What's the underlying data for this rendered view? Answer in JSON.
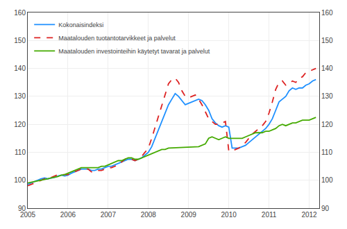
{
  "chart_data": {
    "type": "line",
    "xlim": [
      2005.0,
      2012.25
    ],
    "xticks": [
      2005,
      2006,
      2007,
      2008,
      2009,
      2010,
      2011,
      2012
    ],
    "ylim": [
      90,
      160
    ],
    "yticks": [
      90,
      100,
      110,
      120,
      130,
      140,
      150,
      160
    ],
    "y2lim": [
      90,
      160
    ],
    "y2ticks": [
      90,
      100,
      110,
      120,
      130,
      140,
      150,
      160
    ],
    "grid": true,
    "legend": "upper left",
    "series": [
      {
        "name": "Kokonaisindeksi",
        "color": "#1e90ff",
        "line_style": "solid",
        "x": [
          2005.0,
          2005.083,
          2005.167,
          2005.25,
          2005.333,
          2005.417,
          2005.5,
          2005.583,
          2005.667,
          2005.75,
          2005.833,
          2005.917,
          2006.0,
          2006.083,
          2006.167,
          2006.25,
          2006.333,
          2006.417,
          2006.5,
          2006.583,
          2006.667,
          2006.75,
          2006.833,
          2006.917,
          2007.0,
          2007.083,
          2007.167,
          2007.25,
          2007.333,
          2007.417,
          2007.5,
          2007.583,
          2007.667,
          2007.75,
          2007.833,
          2007.917,
          2008.0,
          2008.083,
          2008.167,
          2008.25,
          2008.333,
          2008.417,
          2008.5,
          2008.583,
          2008.667,
          2008.75,
          2008.833,
          2008.917,
          2009.0,
          2009.083,
          2009.167,
          2009.25,
          2009.333,
          2009.417,
          2009.5,
          2009.583,
          2009.667,
          2009.75,
          2009.833,
          2009.917,
          2010.0,
          2010.083,
          2010.167,
          2010.25,
          2010.333,
          2010.417,
          2010.5,
          2010.583,
          2010.667,
          2010.75,
          2010.833,
          2010.917,
          2011.0,
          2011.083,
          2011.167,
          2011.25,
          2011.333,
          2011.417,
          2011.5,
          2011.583,
          2011.667,
          2011.75,
          2011.833,
          2011.917,
          2012.0,
          2012.083,
          2012.167
        ],
        "values": [
          98.5,
          99.0,
          99.5,
          100.0,
          100.5,
          100.8,
          100.5,
          100.8,
          101.0,
          101.5,
          101.8,
          101.5,
          101.8,
          102.5,
          103.0,
          103.5,
          104.0,
          104.0,
          104.0,
          103.5,
          103.5,
          104.0,
          104.0,
          104.5,
          105.0,
          105.0,
          105.5,
          106.0,
          106.5,
          107.0,
          107.5,
          107.5,
          107.0,
          107.5,
          108.0,
          109.0,
          110.0,
          112.0,
          115.0,
          118.0,
          121.0,
          124.0,
          127.0,
          129.0,
          131.0,
          130.0,
          128.5,
          127.0,
          127.5,
          128.0,
          128.5,
          129.0,
          128.5,
          127.0,
          125.0,
          122.0,
          120.5,
          119.5,
          119.0,
          119.5,
          119.0,
          111.5,
          111.5,
          111.5,
          112.0,
          112.5,
          113.5,
          114.5,
          115.5,
          116.5,
          117.5,
          118.5,
          120.0,
          122.0,
          125.0,
          128.0,
          129.0,
          130.0,
          132.0,
          133.0,
          132.5,
          133.0,
          133.0,
          134.0,
          134.5,
          135.5,
          136.0
        ]
      },
      {
        "name": "Maatalouden tuotantotarvikkeet ja palvelut",
        "color": "#dd2222",
        "line_style": "dashed",
        "x": [
          2005.0,
          2005.083,
          2005.167,
          2005.25,
          2005.333,
          2005.417,
          2005.5,
          2005.583,
          2005.667,
          2005.75,
          2005.833,
          2005.917,
          2006.0,
          2006.083,
          2006.167,
          2006.25,
          2006.333,
          2006.417,
          2006.5,
          2006.583,
          2006.667,
          2006.75,
          2006.833,
          2006.917,
          2007.0,
          2007.083,
          2007.167,
          2007.25,
          2007.333,
          2007.417,
          2007.5,
          2007.583,
          2007.667,
          2007.75,
          2007.833,
          2007.917,
          2008.0,
          2008.083,
          2008.167,
          2008.25,
          2008.333,
          2008.417,
          2008.5,
          2008.583,
          2008.667,
          2008.75,
          2008.833,
          2008.917,
          2009.0,
          2009.083,
          2009.167,
          2009.25,
          2009.333,
          2009.417,
          2009.5,
          2009.583,
          2009.667,
          2009.75,
          2009.833,
          2009.917,
          2010.0,
          2010.083,
          2010.167,
          2010.25,
          2010.333,
          2010.417,
          2010.5,
          2010.583,
          2010.667,
          2010.75,
          2010.833,
          2010.917,
          2011.0,
          2011.083,
          2011.167,
          2011.25,
          2011.333,
          2011.417,
          2011.5,
          2011.583,
          2011.667,
          2011.75,
          2011.833,
          2011.917,
          2012.0,
          2012.083,
          2012.167
        ],
        "values": [
          98.0,
          98.5,
          99.0,
          99.5,
          100.0,
          100.5,
          100.5,
          101.0,
          101.5,
          102.0,
          102.0,
          102.0,
          102.0,
          102.5,
          103.0,
          103.5,
          104.0,
          104.0,
          104.0,
          103.0,
          103.0,
          103.5,
          103.5,
          104.0,
          104.5,
          104.5,
          105.0,
          105.5,
          106.5,
          107.5,
          108.0,
          107.5,
          107.0,
          107.5,
          108.5,
          110.0,
          111.5,
          115.0,
          119.0,
          123.0,
          127.0,
          131.0,
          134.5,
          136.0,
          136.5,
          135.0,
          132.0,
          130.0,
          129.5,
          130.0,
          130.5,
          129.0,
          127.0,
          124.5,
          122.0,
          121.0,
          120.0,
          120.0,
          120.5,
          121.0,
          110.5,
          110.5,
          111.0,
          111.5,
          112.5,
          113.5,
          115.0,
          116.5,
          117.5,
          118.5,
          119.5,
          121.0,
          124.0,
          128.0,
          132.5,
          135.0,
          135.5,
          134.0,
          134.5,
          135.5,
          135.0,
          136.5,
          137.0,
          138.5,
          139.0,
          139.5,
          140.0
        ]
      },
      {
        "name": "Maatalouden investointeihin käytetyt tavarat ja palvelut",
        "color": "#44aa00",
        "line_style": "solid",
        "x": [
          2005.0,
          2005.083,
          2005.167,
          2005.25,
          2005.333,
          2005.417,
          2005.5,
          2005.583,
          2005.667,
          2005.75,
          2005.833,
          2005.917,
          2006.0,
          2006.083,
          2006.167,
          2006.25,
          2006.333,
          2006.417,
          2006.5,
          2006.583,
          2006.667,
          2006.75,
          2006.833,
          2006.917,
          2007.0,
          2007.083,
          2007.167,
          2007.25,
          2007.333,
          2007.417,
          2007.5,
          2007.583,
          2007.667,
          2007.75,
          2007.833,
          2007.917,
          2008.0,
          2008.083,
          2008.167,
          2008.25,
          2008.333,
          2008.417,
          2008.5,
          2009.25,
          2009.333,
          2009.417,
          2009.5,
          2009.583,
          2009.667,
          2009.75,
          2009.833,
          2009.917,
          2010.0,
          2010.083,
          2010.167,
          2010.25,
          2010.333,
          2010.417,
          2010.5,
          2010.583,
          2010.667,
          2010.75,
          2010.833,
          2010.917,
          2011.0,
          2011.083,
          2011.167,
          2011.25,
          2011.333,
          2011.417,
          2011.5,
          2011.583,
          2011.667,
          2011.75,
          2011.833,
          2011.917,
          2012.0,
          2012.083,
          2012.167
        ],
        "values": [
          99.0,
          99.2,
          99.5,
          99.8,
          100.0,
          100.2,
          100.5,
          100.8,
          101.0,
          101.3,
          101.8,
          102.0,
          102.5,
          103.0,
          103.5,
          104.0,
          104.5,
          104.5,
          104.5,
          104.5,
          104.5,
          104.5,
          105.0,
          105.0,
          105.5,
          106.0,
          106.5,
          107.0,
          107.0,
          107.5,
          108.0,
          108.0,
          107.5,
          107.5,
          108.0,
          108.5,
          109.0,
          109.5,
          110.0,
          110.5,
          111.0,
          111.0,
          111.5,
          112.0,
          112.5,
          113.0,
          115.0,
          115.5,
          115.0,
          114.5,
          115.0,
          115.5,
          115.0,
          115.0,
          115.0,
          115.0,
          115.0,
          115.5,
          116.0,
          116.5,
          117.0,
          117.0,
          117.0,
          117.5,
          117.5,
          118.0,
          118.5,
          119.5,
          120.0,
          119.5,
          120.0,
          120.5,
          120.5,
          121.0,
          121.5,
          121.5,
          121.5,
          122.0,
          122.5
        ]
      }
    ]
  }
}
